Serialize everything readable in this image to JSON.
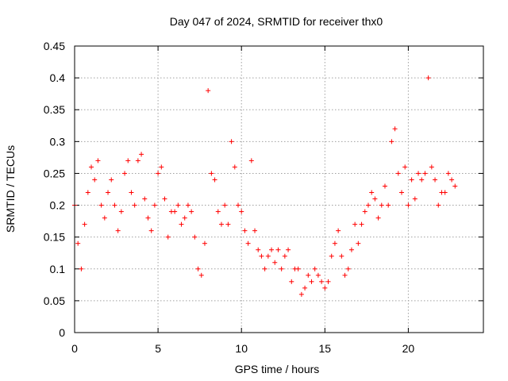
{
  "chart_data": {
    "type": "scatter",
    "title": "Day 047 of 2024, SRMTID for receiver thx0",
    "xlabel": "GPS time / hours",
    "ylabel": "SRMTID / TECUs",
    "xlim": [
      0,
      24.5
    ],
    "ylim": [
      0,
      0.45
    ],
    "xticks": [
      0,
      5,
      10,
      15,
      20
    ],
    "xtick_labels": [
      "0",
      "5",
      "10",
      "15",
      "20"
    ],
    "yticks": [
      0,
      0.05,
      0.1,
      0.15,
      0.2,
      0.25,
      0.3,
      0.35,
      0.4,
      0.45
    ],
    "ytick_labels": [
      "0",
      "0.05",
      "0.1",
      "0.15",
      "0.2",
      "0.25",
      "0.3",
      "0.35",
      "0.4",
      "0.45"
    ],
    "grid": true,
    "marker": "+",
    "color": "#ff0000",
    "series": [
      {
        "x": [
          0.0,
          0.2,
          0.4,
          0.6,
          0.8,
          1.0,
          1.2,
          1.4,
          1.6,
          1.8,
          2.0,
          2.2,
          2.4,
          2.6,
          2.8,
          3.0,
          3.2,
          3.4,
          3.6,
          3.8,
          4.0,
          4.2,
          4.4,
          4.6,
          4.8,
          5.0,
          5.2,
          5.4,
          5.6,
          5.8,
          6.0,
          6.2,
          6.4,
          6.6,
          6.8,
          7.0,
          7.2,
          7.4,
          7.6,
          7.8,
          8.0,
          8.2,
          8.4,
          8.6,
          8.8,
          9.0,
          9.2,
          9.4,
          9.6,
          9.8,
          10.0,
          10.2,
          10.4,
          10.6,
          10.8,
          11.0,
          11.2,
          11.4,
          11.6,
          11.8,
          12.0,
          12.2,
          12.4,
          12.6,
          12.8,
          13.0,
          13.2,
          13.4,
          13.6,
          13.8,
          14.0,
          14.2,
          14.4,
          14.6,
          14.8,
          15.0,
          15.2,
          15.4,
          15.6,
          15.8,
          16.0,
          16.2,
          16.4,
          16.6,
          16.8,
          17.0,
          17.2,
          17.4,
          17.6,
          17.8,
          18.0,
          18.2,
          18.4,
          18.6,
          18.8,
          19.0,
          19.2,
          19.4,
          19.6,
          19.8,
          20.0,
          20.2,
          20.4,
          20.6,
          20.8,
          21.0,
          21.2,
          21.4,
          21.6,
          21.8,
          22.0,
          22.2,
          22.4,
          22.6,
          22.8
        ],
        "y": [
          0.2,
          0.14,
          0.1,
          0.17,
          0.22,
          0.26,
          0.24,
          0.27,
          0.2,
          0.18,
          0.22,
          0.24,
          0.2,
          0.16,
          0.19,
          0.25,
          0.27,
          0.22,
          0.2,
          0.27,
          0.28,
          0.21,
          0.18,
          0.16,
          0.2,
          0.25,
          0.26,
          0.21,
          0.15,
          0.19,
          0.19,
          0.2,
          0.17,
          0.18,
          0.2,
          0.19,
          0.15,
          0.1,
          0.09,
          0.14,
          0.38,
          0.25,
          0.24,
          0.19,
          0.17,
          0.2,
          0.17,
          0.3,
          0.26,
          0.2,
          0.19,
          0.16,
          0.14,
          0.27,
          0.16,
          0.13,
          0.12,
          0.1,
          0.12,
          0.13,
          0.11,
          0.13,
          0.1,
          0.12,
          0.13,
          0.08,
          0.1,
          0.1,
          0.06,
          0.07,
          0.09,
          0.08,
          0.1,
          0.09,
          0.08,
          0.07,
          0.08,
          0.12,
          0.14,
          0.16,
          0.12,
          0.09,
          0.1,
          0.13,
          0.17,
          0.14,
          0.17,
          0.19,
          0.2,
          0.22,
          0.21,
          0.18,
          0.2,
          0.23,
          0.2,
          0.3,
          0.32,
          0.25,
          0.22,
          0.26,
          0.2,
          0.24,
          0.21,
          0.25,
          0.24,
          0.25,
          0.4,
          0.26,
          0.24,
          0.2,
          0.22,
          0.22,
          0.25,
          0.24,
          0.23
        ]
      }
    ]
  }
}
